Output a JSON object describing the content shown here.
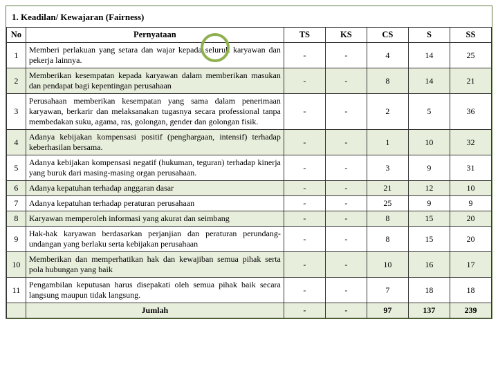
{
  "title": "1.  Keadilan/ Kewajaran (Fairness)",
  "headers": {
    "no": "No",
    "stmt": "Pernyataan",
    "ts": "TS",
    "ks": "KS",
    "cs": "CS",
    "s": "S",
    "ss": "SS"
  },
  "rows": [
    {
      "no": "1",
      "stmt": "Memberi perlakuan yang setara dan wajar kepada seluruh karyawan dan pekerja lainnya.",
      "ts": "-",
      "ks": "-",
      "cs": "4",
      "s": "14",
      "ss": "25"
    },
    {
      "no": "2",
      "stmt": "Memberikan kesempatan kepada karyawan dalam memberikan masukan dan pendapat bagi kepentingan perusahaan",
      "ts": "-",
      "ks": "-",
      "cs": "8",
      "s": "14",
      "ss": "21"
    },
    {
      "no": "3",
      "stmt": "Perusahaan memberikan kesempatan yang sama dalam penerimaan karyawan, berkarir dan melaksanakan tugasnya secara professional tanpa membedakan suku, agama, ras, golongan, gender dan golongan fisik.",
      "ts": "-",
      "ks": "-",
      "cs": "2",
      "s": "5",
      "ss": "36"
    },
    {
      "no": "4",
      "stmt": "Adanya kebijakan kompensasi positif (penghargaan, intensif) terhadap keberhasilan bersama.",
      "ts": "-",
      "ks": "-",
      "cs": "1",
      "s": "10",
      "ss": "32"
    },
    {
      "no": "5",
      "stmt": "Adanya kebijakan kompensasi negatif (hukuman, teguran) terhadap kinerja yang buruk dari masing-masing organ perusahaan.",
      "ts": "-",
      "ks": "-",
      "cs": "3",
      "s": "9",
      "ss": "31"
    },
    {
      "no": "6",
      "stmt": "Adanya kepatuhan terhadap anggaran dasar",
      "ts": "-",
      "ks": "-",
      "cs": "21",
      "s": "12",
      "ss": "10"
    },
    {
      "no": "7",
      "stmt": "Adanya kepatuhan terhadap peraturan perusahaan",
      "ts": "-",
      "ks": "-",
      "cs": "25",
      "s": "9",
      "ss": "9"
    },
    {
      "no": "8",
      "stmt": "Karyawan memperoleh informasi yang akurat dan seimbang",
      "ts": "-",
      "ks": "-",
      "cs": "8",
      "s": "15",
      "ss": "20"
    },
    {
      "no": "9",
      "stmt": "Hak-hak karyawan berdasarkan perjanjian dan peraturan perundang-undangan yang berlaku serta kebijakan perusahaan",
      "ts": "-",
      "ks": "-",
      "cs": "8",
      "s": "15",
      "ss": "20"
    },
    {
      "no": "10",
      "stmt": "Memberikan dan memperhatikan hak dan kewajiban semua pihak serta pola hubungan yang baik",
      "ts": "-",
      "ks": "-",
      "cs": "10",
      "s": "16",
      "ss": "17"
    },
    {
      "no": "11",
      "stmt": "Pengambilan keputusan harus disepakati oleh semua pihak baik secara langsung maupun tidak langsung.",
      "ts": "-",
      "ks": "-",
      "cs": "7",
      "s": "18",
      "ss": "18"
    }
  ],
  "total": {
    "label": "Jumlah",
    "ts": "-",
    "ks": "-",
    "cs": "97",
    "s": "137",
    "ss": "239"
  },
  "colors": {
    "stripe": "#e8eedc",
    "border_outer": "#5a7a3a",
    "circle": "#8fb04e"
  }
}
